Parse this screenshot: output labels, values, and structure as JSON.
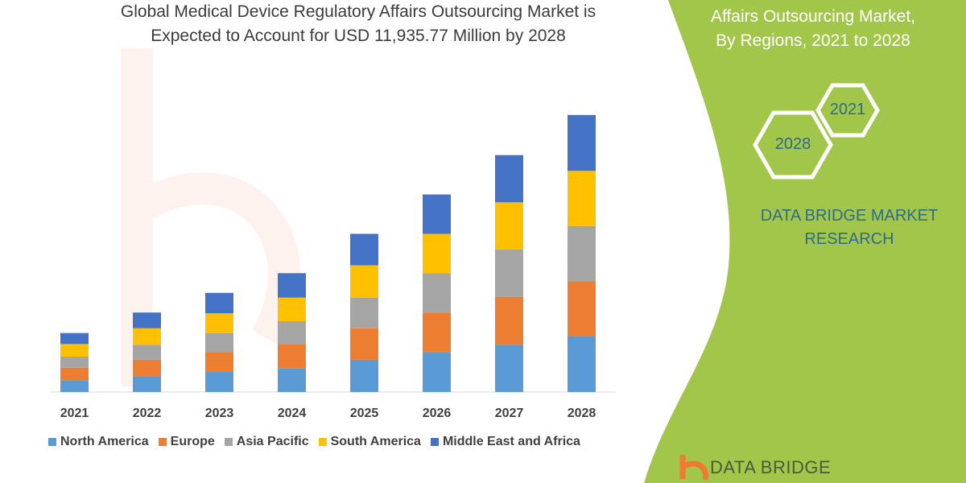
{
  "header": {
    "title_line1": "Global Medical Device Regulatory Affairs Outsourcing Market is",
    "title_line2": "Expected to Account for USD 11,935.77 Million by 2028"
  },
  "side_panel": {
    "title_line1": "Affairs Outsourcing Market,",
    "title_line2": "By Regions, 2021 to 2028",
    "hex_start": "2021",
    "hex_end": "2028",
    "brand_line1": "DATA BRIDGE MARKET",
    "brand_line2": "RESEARCH",
    "logo_text": "DATA BRIDGE",
    "panel_color": "#a2c64a"
  },
  "chart_data": {
    "type": "bar",
    "stacked": true,
    "categories": [
      "2021",
      "2022",
      "2023",
      "2024",
      "2025",
      "2026",
      "2027",
      "2028"
    ],
    "series": [
      {
        "name": "North America",
        "color": "#5b9bd5",
        "values": [
          15,
          20,
          26,
          30,
          41,
          51,
          60,
          71
        ]
      },
      {
        "name": "Europe",
        "color": "#ed7d31",
        "values": [
          16,
          21,
          25,
          31,
          40,
          50,
          61,
          70
        ]
      },
      {
        "name": "Asia Pacific",
        "color": "#a5a5a5",
        "values": [
          14,
          19,
          24,
          29,
          39,
          50,
          60,
          70
        ]
      },
      {
        "name": "South America",
        "color": "#ffc000",
        "values": [
          16,
          21,
          25,
          30,
          41,
          50,
          60,
          70
        ]
      },
      {
        "name": "Middle East and Africa",
        "color": "#4472c4",
        "values": [
          14,
          20,
          26,
          31,
          40,
          50,
          60,
          71
        ]
      }
    ],
    "ylim": [
      0,
      360
    ],
    "grid": false,
    "legend": "bottom",
    "xlabel": "",
    "ylabel": ""
  }
}
